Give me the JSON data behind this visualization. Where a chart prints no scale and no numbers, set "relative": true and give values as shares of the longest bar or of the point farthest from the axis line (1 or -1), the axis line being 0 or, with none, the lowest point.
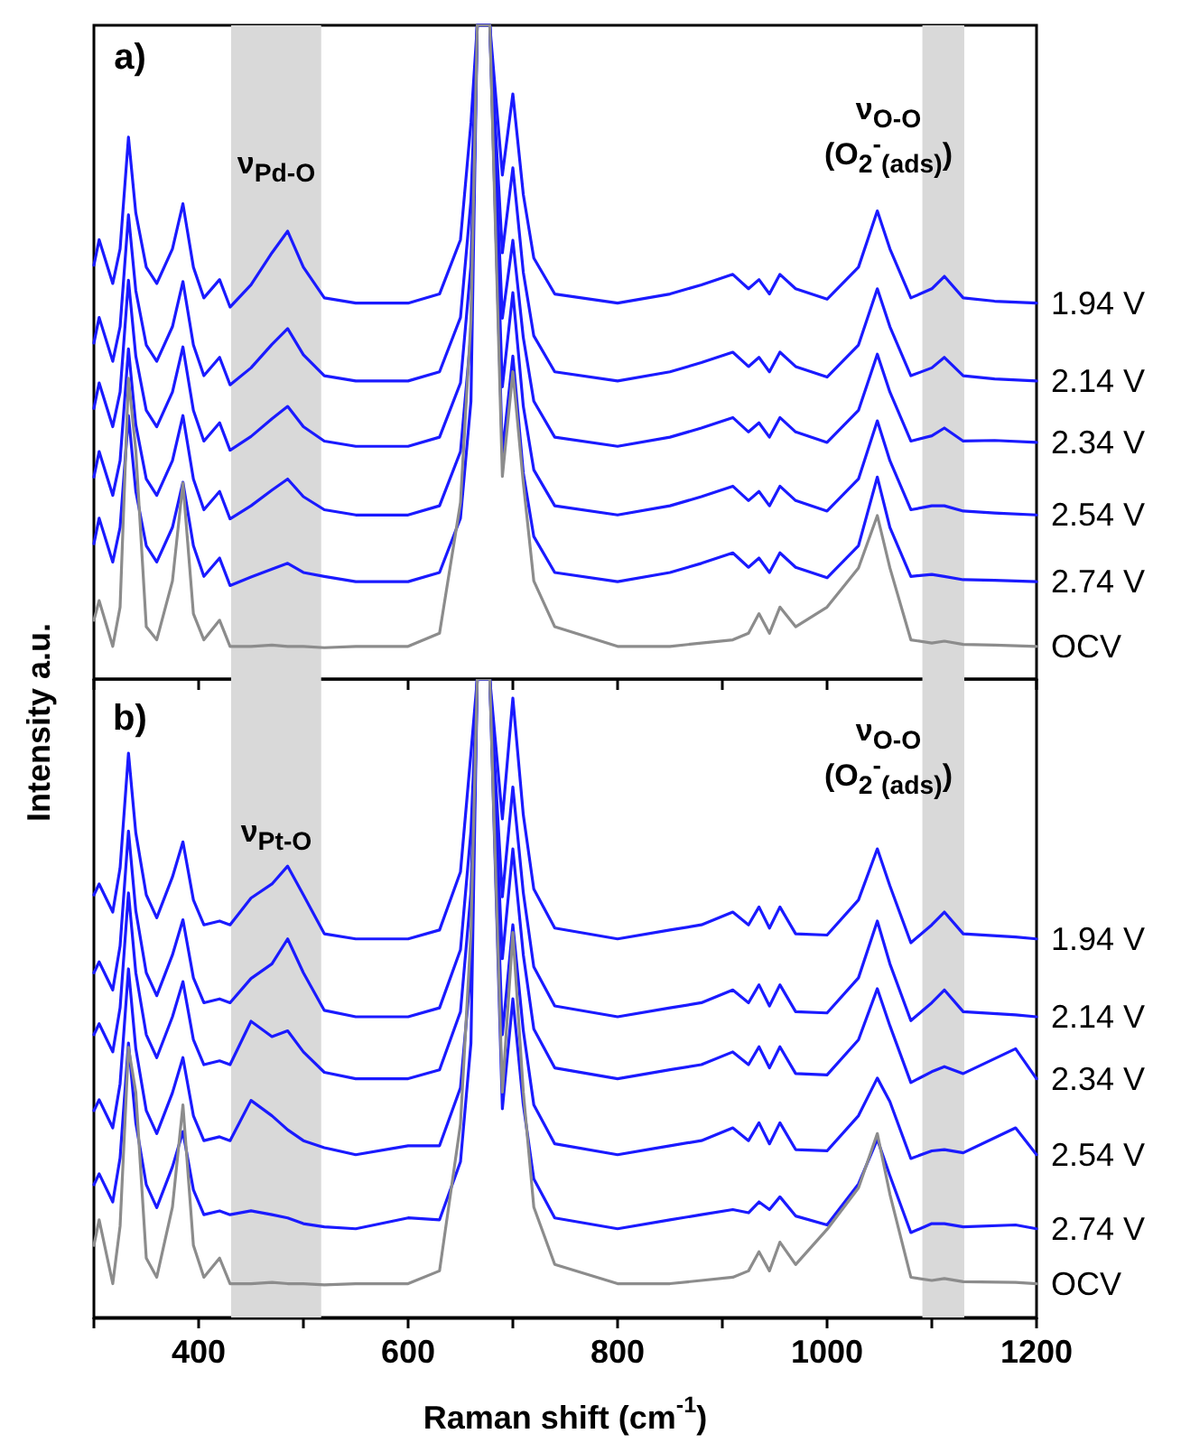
{
  "chart_data": [
    {
      "type": "line",
      "relative": true,
      "ylabel": "Intensity a.u.",
      "annotations": [
        "a)",
        "ν$_{Pd-O}$",
        "ν$_{O-O}$",
        "(O$_{2}$$^{-}$$_{(ads)}$)"
      ],
      "x": [
        300,
        305,
        318,
        325,
        333,
        340,
        350,
        360,
        375,
        385,
        395,
        405,
        420,
        430,
        450,
        470,
        485,
        500,
        520,
        550,
        600,
        630,
        650,
        660,
        666,
        672,
        678,
        690,
        700,
        710,
        720,
        740,
        800,
        850,
        880,
        910,
        925,
        935,
        945,
        955,
        970,
        1000,
        1030,
        1048,
        1060,
        1080,
        1100,
        1112,
        1130,
        1160,
        1200
      ],
      "xlim": [
        300,
        1200
      ],
      "xticks": [
        {
          "value": 300,
          "label": null
        },
        {
          "value": 400,
          "label": null
        },
        {
          "value": 500,
          "label": null
        },
        {
          "value": 600,
          "label": null
        },
        {
          "value": 700,
          "label": null
        },
        {
          "value": 800,
          "label": null
        },
        {
          "value": 900,
          "label": null
        },
        {
          "value": 1000,
          "label": null
        },
        {
          "value": 1100,
          "label": null
        },
        {
          "value": 1200,
          "label": null
        }
      ],
      "tick_labels": false,
      "grid": false,
      "legend": false,
      "marker": "none",
      "line_style": "solid",
      "bands": [
        {
          "axis": "x",
          "from": 431,
          "to": 517,
          "color": "#d9d9d9"
        },
        {
          "axis": "x",
          "from": 1091,
          "to": 1131,
          "color": "#d9d9d9"
        }
      ],
      "series": [
        {
          "name": "1.94 V",
          "color": "#1a1aff",
          "values": [
            0.633,
            0.672,
            0.605,
            0.658,
            0.829,
            0.713,
            0.63,
            0.605,
            0.658,
            0.727,
            0.63,
            0.583,
            0.611,
            0.569,
            0.603,
            0.652,
            0.685,
            0.63,
            0.583,
            0.575,
            0.575,
            0.589,
            0.672,
            0.851,
            1,
            1,
            1,
            0.771,
            0.895,
            0.741,
            0.644,
            0.589,
            0.575,
            0.589,
            0.603,
            0.619,
            0.597,
            0.611,
            0.589,
            0.619,
            0.597,
            0.581,
            0.63,
            0.716,
            0.658,
            0.583,
            0.597,
            0.616,
            0.583,
            0.578,
            0.575
          ]
        },
        {
          "name": "2.14 V",
          "color": "#1a1aff",
          "values": [
            0.514,
            0.553,
            0.486,
            0.539,
            0.71,
            0.594,
            0.511,
            0.486,
            0.539,
            0.608,
            0.511,
            0.464,
            0.492,
            0.45,
            0.476,
            0.512,
            0.536,
            0.496,
            0.464,
            0.456,
            0.456,
            0.47,
            0.553,
            0.732,
            1,
            1,
            1,
            0.652,
            0.782,
            0.622,
            0.525,
            0.47,
            0.456,
            0.47,
            0.484,
            0.5,
            0.478,
            0.492,
            0.47,
            0.5,
            0.478,
            0.462,
            0.511,
            0.597,
            0.539,
            0.464,
            0.476,
            0.492,
            0.464,
            0.459,
            0.456
          ]
        },
        {
          "name": "2.34 V",
          "color": "#1a1aff",
          "values": [
            0.414,
            0.453,
            0.386,
            0.439,
            0.61,
            0.494,
            0.411,
            0.386,
            0.439,
            0.508,
            0.411,
            0.364,
            0.392,
            0.35,
            0.371,
            0.398,
            0.417,
            0.386,
            0.364,
            0.356,
            0.356,
            0.37,
            0.453,
            0.632,
            1,
            1,
            1,
            0.552,
            0.671,
            0.522,
            0.425,
            0.37,
            0.356,
            0.37,
            0.384,
            0.4,
            0.378,
            0.392,
            0.37,
            0.4,
            0.378,
            0.362,
            0.411,
            0.497,
            0.439,
            0.364,
            0.372,
            0.384,
            0.364,
            0.365,
            0.362
          ]
        },
        {
          "name": "2.54 V",
          "color": "#1a1aff",
          "values": [
            0.309,
            0.348,
            0.281,
            0.334,
            0.505,
            0.389,
            0.306,
            0.281,
            0.334,
            0.403,
            0.306,
            0.259,
            0.287,
            0.245,
            0.265,
            0.289,
            0.306,
            0.279,
            0.259,
            0.251,
            0.251,
            0.265,
            0.348,
            0.527,
            1,
            1,
            1,
            0.447,
            0.591,
            0.417,
            0.32,
            0.265,
            0.251,
            0.265,
            0.279,
            0.295,
            0.273,
            0.287,
            0.265,
            0.295,
            0.273,
            0.257,
            0.306,
            0.395,
            0.334,
            0.259,
            0.265,
            0.265,
            0.257,
            0.254,
            0.251
          ]
        },
        {
          "name": "2.74 V",
          "color": "#1a1aff",
          "values": [
            0.207,
            0.246,
            0.179,
            0.232,
            0.403,
            0.287,
            0.204,
            0.179,
            0.232,
            0.301,
            0.204,
            0.157,
            0.185,
            0.143,
            0.156,
            0.168,
            0.177,
            0.163,
            0.157,
            0.149,
            0.149,
            0.163,
            0.246,
            0.425,
            1,
            1,
            1,
            0.345,
            0.494,
            0.315,
            0.218,
            0.163,
            0.149,
            0.163,
            0.177,
            0.193,
            0.171,
            0.185,
            0.163,
            0.193,
            0.171,
            0.155,
            0.204,
            0.309,
            0.232,
            0.157,
            0.16,
            0.157,
            0.152,
            0.151,
            0.149
          ]
        },
        {
          "name": "OCV",
          "color": "#8c8c8c",
          "values": [
            0.09,
            0.12,
            0.05,
            0.11,
            0.46,
            0.35,
            0.08,
            0.06,
            0.15,
            0.3,
            0.1,
            0.06,
            0.09,
            0.05,
            0.05,
            0.052,
            0.05,
            0.05,
            0.048,
            0.05,
            0.05,
            0.07,
            0.27,
            0.55,
            1,
            1,
            1,
            0.31,
            0.47,
            0.3,
            0.15,
            0.08,
            0.05,
            0.05,
            0.055,
            0.06,
            0.07,
            0.1,
            0.07,
            0.11,
            0.08,
            0.11,
            0.17,
            0.25,
            0.17,
            0.06,
            0.055,
            0.058,
            0.053,
            0.052,
            0.05
          ]
        }
      ]
    },
    {
      "type": "line",
      "relative": true,
      "xlabel": "Raman shift (cm$^{-1}$)",
      "annotations": [
        "b)",
        "ν$_{Pt-O}$",
        "ν$_{O-O}$",
        "(O$_{2}$$^{-}$$_{(ads)}$)"
      ],
      "x": [
        300,
        305,
        318,
        325,
        333,
        340,
        350,
        360,
        375,
        385,
        395,
        405,
        420,
        430,
        450,
        470,
        485,
        500,
        520,
        550,
        600,
        630,
        650,
        660,
        666,
        672,
        678,
        690,
        700,
        710,
        720,
        740,
        800,
        850,
        880,
        910,
        925,
        935,
        945,
        955,
        970,
        1000,
        1030,
        1048,
        1060,
        1080,
        1100,
        1112,
        1130,
        1180,
        1200
      ],
      "xlim": [
        300,
        1200
      ],
      "xticks": [
        {
          "value": 300,
          "label": null
        },
        400,
        {
          "value": 500,
          "label": null
        },
        600,
        {
          "value": 700,
          "label": null
        },
        800,
        {
          "value": 900,
          "label": null
        },
        1000,
        {
          "value": 1100,
          "label": null
        },
        1200
      ],
      "tick_labels": "x",
      "grid": false,
      "legend": false,
      "marker": "none",
      "line_style": "solid",
      "bands": [
        {
          "axis": "x",
          "from": 431,
          "to": 517,
          "color": "#d9d9d9"
        },
        {
          "axis": "x",
          "from": 1091,
          "to": 1131,
          "color": "#d9d9d9"
        }
      ],
      "series": [
        {
          "name": "1.94 V",
          "color": "#1a1aff",
          "values": [
            0.662,
            0.679,
            0.635,
            0.704,
            0.884,
            0.759,
            0.662,
            0.626,
            0.69,
            0.745,
            0.654,
            0.615,
            0.621,
            0.615,
            0.657,
            0.679,
            0.707,
            0.662,
            0.601,
            0.593,
            0.593,
            0.607,
            0.698,
            0.884,
            1,
            1,
            1,
            0.781,
            0.97,
            0.787,
            0.671,
            0.61,
            0.593,
            0.607,
            0.615,
            0.635,
            0.615,
            0.643,
            0.61,
            0.643,
            0.601,
            0.599,
            0.654,
            0.734,
            0.676,
            0.587,
            0.615,
            0.635,
            0.601,
            0.596,
            0.593
          ]
        },
        {
          "name": "2.14 V",
          "color": "#1a1aff",
          "values": [
            0.54,
            0.557,
            0.513,
            0.582,
            0.762,
            0.637,
            0.54,
            0.504,
            0.568,
            0.623,
            0.532,
            0.493,
            0.499,
            0.493,
            0.531,
            0.554,
            0.593,
            0.54,
            0.481,
            0.471,
            0.471,
            0.485,
            0.576,
            0.762,
            1,
            1,
            1,
            0.659,
            0.831,
            0.665,
            0.549,
            0.488,
            0.471,
            0.485,
            0.493,
            0.513,
            0.493,
            0.521,
            0.488,
            0.521,
            0.479,
            0.477,
            0.532,
            0.621,
            0.554,
            0.465,
            0.493,
            0.513,
            0.479,
            0.474,
            0.471
          ]
        },
        {
          "name": "2.34 V",
          "color": "#1a1aff",
          "values": [
            0.443,
            0.46,
            0.416,
            0.485,
            0.665,
            0.54,
            0.443,
            0.407,
            0.471,
            0.526,
            0.435,
            0.396,
            0.402,
            0.396,
            0.464,
            0.44,
            0.449,
            0.416,
            0.384,
            0.374,
            0.374,
            0.388,
            0.479,
            0.665,
            1,
            1,
            1,
            0.562,
            0.734,
            0.568,
            0.452,
            0.391,
            0.374,
            0.388,
            0.396,
            0.416,
            0.396,
            0.424,
            0.391,
            0.424,
            0.382,
            0.38,
            0.435,
            0.515,
            0.457,
            0.368,
            0.385,
            0.393,
            0.382,
            0.421,
            0.374
          ]
        },
        {
          "name": "2.54 V",
          "color": "#1a1aff",
          "values": [
            0.324,
            0.341,
            0.297,
            0.366,
            0.546,
            0.421,
            0.324,
            0.288,
            0.352,
            0.407,
            0.316,
            0.277,
            0.283,
            0.277,
            0.34,
            0.316,
            0.294,
            0.277,
            0.266,
            0.255,
            0.269,
            0.269,
            0.36,
            0.546,
            1,
            1,
            1,
            0.443,
            0.615,
            0.449,
            0.333,
            0.272,
            0.255,
            0.269,
            0.277,
            0.297,
            0.277,
            0.305,
            0.272,
            0.305,
            0.263,
            0.261,
            0.316,
            0.375,
            0.338,
            0.249,
            0.261,
            0.263,
            0.258,
            0.297,
            0.255
          ]
        },
        {
          "name": "2.74 V",
          "color": "#1a1aff",
          "values": [
            0.208,
            0.225,
            0.181,
            0.25,
            0.43,
            0.305,
            0.208,
            0.172,
            0.236,
            0.291,
            0.2,
            0.161,
            0.167,
            0.161,
            0.167,
            0.161,
            0.156,
            0.147,
            0.142,
            0.139,
            0.156,
            0.153,
            0.244,
            0.43,
            1,
            1,
            1,
            0.327,
            0.499,
            0.333,
            0.217,
            0.156,
            0.139,
            0.153,
            0.161,
            0.169,
            0.164,
            0.181,
            0.169,
            0.189,
            0.159,
            0.145,
            0.209,
            0.279,
            0.222,
            0.133,
            0.147,
            0.147,
            0.142,
            0.145,
            0.139
          ]
        },
        {
          "name": "OCV",
          "color": "#8c8c8c",
          "values": [
            0.113,
            0.153,
            0.053,
            0.143,
            0.423,
            0.353,
            0.093,
            0.063,
            0.173,
            0.333,
            0.113,
            0.063,
            0.093,
            0.053,
            0.053,
            0.055,
            0.053,
            0.053,
            0.051,
            0.053,
            0.053,
            0.073,
            0.303,
            0.603,
            1,
            1,
            1,
            0.353,
            0.603,
            0.353,
            0.173,
            0.083,
            0.053,
            0.053,
            0.058,
            0.063,
            0.073,
            0.103,
            0.073,
            0.118,
            0.083,
            0.138,
            0.203,
            0.288,
            0.193,
            0.063,
            0.058,
            0.061,
            0.056,
            0.055,
            0.053
          ]
        }
      ]
    }
  ]
}
